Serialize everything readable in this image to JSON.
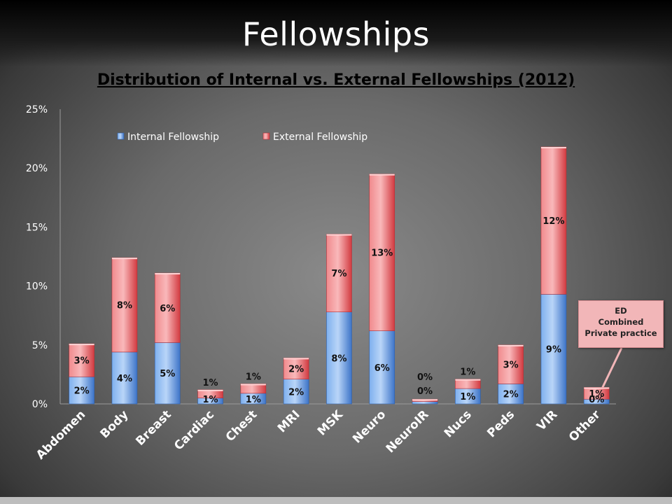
{
  "slide_title": "Fellowships",
  "chart_data": {
    "type": "bar",
    "stacked": true,
    "title": "Distribution of Internal vs. External Fellowships (2012)",
    "xlabel": "",
    "ylabel": "",
    "ylim": [
      0,
      25
    ],
    "yticks": [
      "0%",
      "5%",
      "10%",
      "15%",
      "20%",
      "25%"
    ],
    "categories": [
      "Abdomen",
      "Body",
      "Breast",
      "Cardiac",
      "Chest",
      "MRI",
      "MSK",
      "Neuro",
      "NeuroIR",
      "Nucs",
      "Peds",
      "VIR",
      "Other"
    ],
    "series": [
      {
        "name": "Internal Fellowship",
        "color": "#4f86d6",
        "values": [
          2.3,
          4.4,
          5.2,
          0.5,
          0.9,
          2.1,
          7.8,
          6.2,
          0.2,
          1.3,
          1.7,
          9.3,
          0.4
        ],
        "labels": [
          "2%",
          "4%",
          "5%",
          "1%",
          "1%",
          "2%",
          "8%",
          "6%",
          "0%",
          "1%",
          "2%",
          "9%",
          "0%"
        ]
      },
      {
        "name": "External Fellowship",
        "color": "#e0474c",
        "values": [
          2.8,
          8.0,
          5.9,
          0.7,
          0.8,
          1.8,
          6.6,
          13.3,
          0.2,
          0.8,
          3.3,
          12.5,
          1.0
        ],
        "labels": [
          "3%",
          "8%",
          "6%",
          "1%",
          "1%",
          "2%",
          "7%",
          "13%",
          "0%",
          "1%",
          "3%",
          "12%",
          "1%"
        ]
      }
    ],
    "legend": "top-left",
    "grid": false,
    "callout": [
      "ED",
      "Combined",
      "Private practice"
    ]
  }
}
